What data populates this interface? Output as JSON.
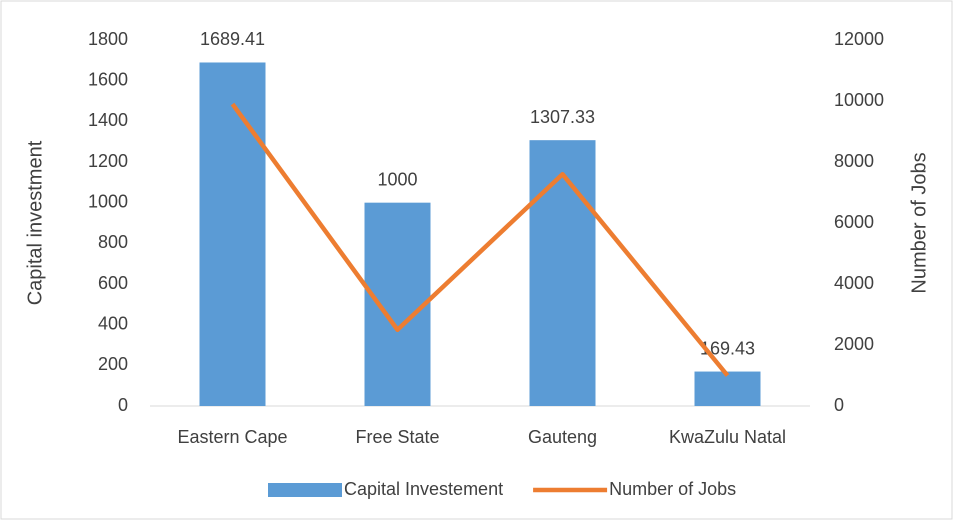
{
  "chart_data": {
    "type": "combo",
    "categories": [
      "Eastern Cape",
      "Free State",
      "Gauteng",
      "KwaZulu Natal"
    ],
    "series": [
      {
        "name": "Capital Investement",
        "type": "bar",
        "color": "#5b9bd5",
        "values": [
          1689.41,
          1000,
          1307.33,
          169.43
        ],
        "data_labels": true
      },
      {
        "name": "Number of Jobs",
        "type": "line",
        "color": "#ed7d31",
        "axis": "y2",
        "values": [
          9900,
          2500,
          7600,
          1000
        ]
      }
    ],
    "ylabel": "Capital investment",
    "y2label": "Number of Jobs",
    "ylim": [
      0,
      1800
    ],
    "yticks": [
      0,
      200,
      400,
      600,
      800,
      1000,
      1200,
      1400,
      1600,
      1800
    ],
    "y2lim": [
      0,
      12000
    ],
    "y2ticks": [
      0,
      2000,
      4000,
      6000,
      8000,
      10000,
      12000
    ],
    "grid": false,
    "legend": "bottom"
  }
}
